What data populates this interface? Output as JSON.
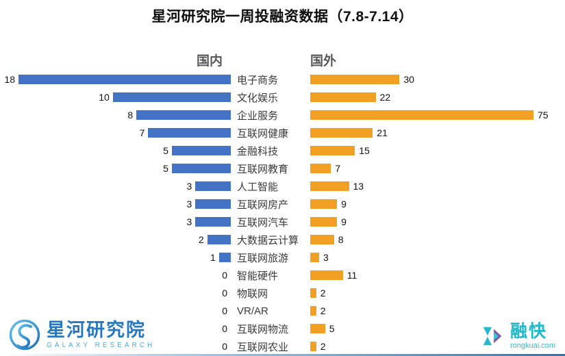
{
  "title": "星河研究院一周投融资数据（7.8-7.14）",
  "colors": {
    "domestic_blue": "#4472C4",
    "foreign_orange": "#F2A024",
    "galaxy_blue": "#2878BE",
    "rongkuai_teal": "#1FB9C9"
  },
  "chart_data": {
    "type": "bar",
    "variant": "butterfly",
    "title": "星河研究院一周投融资数据（7.8-7.14）",
    "categories": [
      "电子商务",
      "文化娱乐",
      "企业服务",
      "互联网健康",
      "金融科技",
      "互联网教育",
      "人工智能",
      "互联网房产",
      "互联网汽车",
      "大数据云计算",
      "互联网旅游",
      "智能硬件",
      "物联网",
      "VR/AR",
      "互联网物流",
      "互联网农业"
    ],
    "series": [
      {
        "name": "国内",
        "side": "left",
        "color": "#4472C4",
        "axis_max": 18,
        "values": [
          18,
          10,
          8,
          7,
          5,
          5,
          3,
          3,
          3,
          2,
          1,
          0,
          0,
          0,
          0,
          0
        ]
      },
      {
        "name": "国外",
        "side": "right",
        "color": "#F2A024",
        "axis_max": 75,
        "values": [
          30,
          22,
          75,
          21,
          15,
          7,
          13,
          9,
          9,
          8,
          3,
          11,
          2,
          2,
          5,
          2
        ]
      }
    ],
    "value_labels": true,
    "grid": false,
    "legend_position": "top"
  },
  "footer": {
    "galaxy": {
      "name": "星河研究院",
      "subtitle": "GALAXY RESEARCH"
    },
    "rongkuai": {
      "name": "融快",
      "subtitle": "rongkuai.com"
    }
  }
}
